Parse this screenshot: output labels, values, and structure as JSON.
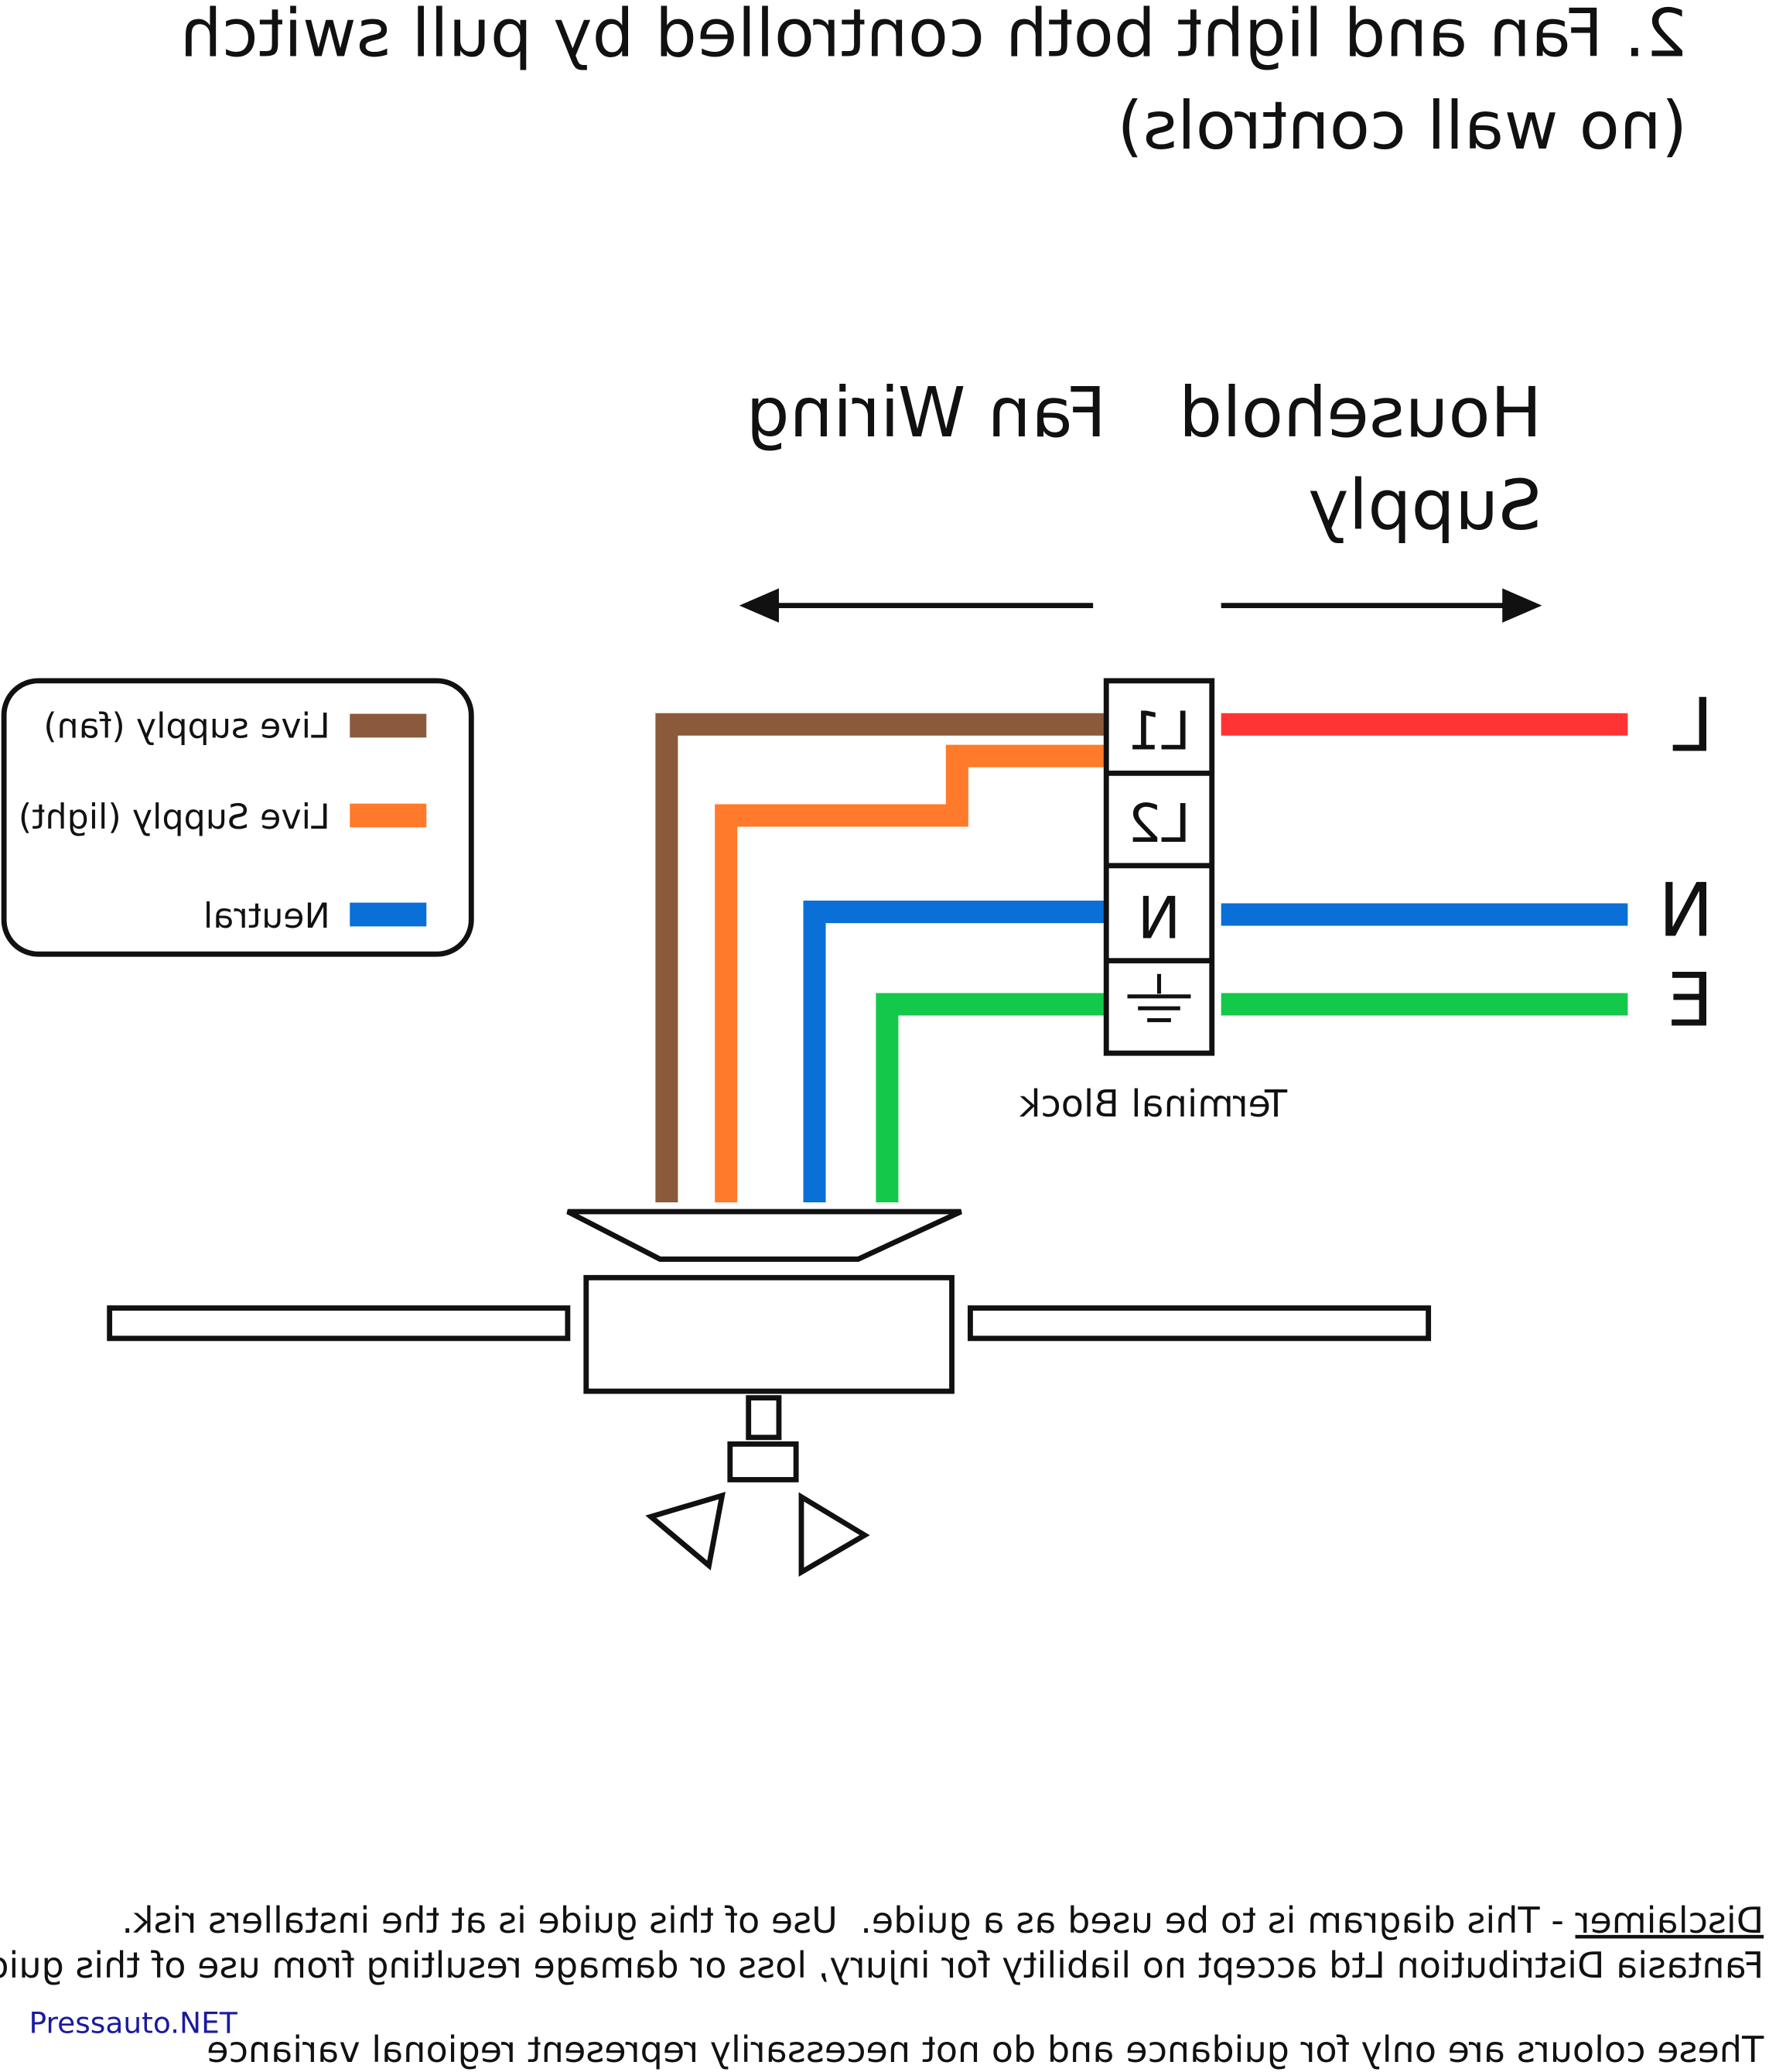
{
  "title": {
    "line1": "2. Fan and light both controlled by pull switch",
    "line2": "(no wall controls)"
  },
  "headers": {
    "household_line1": "Household",
    "household_line2": "Supply",
    "fan_wiring": "Fan Wiring"
  },
  "terminal_block": {
    "label": "Terminal Block",
    "terminals": [
      "L1",
      "L2",
      "N"
    ],
    "earth_icon": "earth-ground-icon"
  },
  "supply_labels": {
    "live": "L",
    "neutral": "N",
    "earth": "E"
  },
  "legend": {
    "items": [
      {
        "label": "Live supply (fan)",
        "color": "#8b5a3c"
      },
      {
        "label": "Live Supply (light)",
        "color": "#ff7a2a"
      },
      {
        "label": "Neutral",
        "color": "#0a6fd6"
      }
    ]
  },
  "wire_colors": {
    "live_supply": "#ff3333",
    "neutral": "#0a6fd6",
    "earth": "#14c84a",
    "fan_live": "#8b5a3c",
    "light_live": "#ff7a2a"
  },
  "mirrored": true,
  "disclaimer": {
    "heading": "Disclaimer",
    "line1_rest": " - This diagram is to be used as a guide.  Use of this guide is at the installers risk.",
    "line2": "Fantasia Distribution Ltd accept no liability for injury, loss or damage resulting from use of this guide",
    "line3": "These colours are only for guidance and do not necessarily represent regional variance"
  },
  "watermark": {
    "text": "Pressauto.NET",
    "color": "#1a1aa0"
  }
}
